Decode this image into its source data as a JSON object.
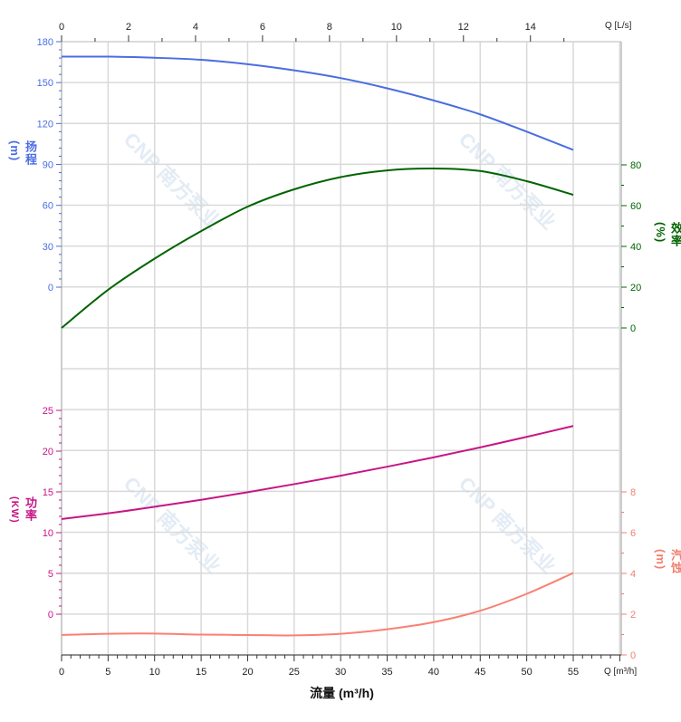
{
  "chart_data": [
    {
      "type": "line",
      "name_label": "扬程",
      "unit_label": "(m)",
      "color": "#4a6ee0",
      "ylim": [
        0,
        180
      ],
      "yticks": [
        0,
        30,
        60,
        90,
        120,
        150,
        180
      ],
      "x": [
        0,
        5,
        10,
        15,
        20,
        25,
        30,
        35,
        40,
        45,
        50,
        55
      ],
      "values": [
        169,
        169,
        168.2,
        166.7,
        163.5,
        159,
        153.3,
        145.8,
        136.9,
        126.7,
        114,
        100.7
      ]
    },
    {
      "type": "line",
      "name_label": "效率",
      "unit_label": "(%)",
      "color": "#006400",
      "ylim": [
        0,
        80
      ],
      "yticks": [
        0,
        20,
        40,
        60,
        80
      ],
      "x": [
        0,
        5,
        10,
        15,
        20,
        25,
        30,
        35,
        40,
        45,
        50,
        55
      ],
      "values": [
        0,
        18.7,
        34,
        47.5,
        59.5,
        68,
        74,
        77.3,
        78.2,
        77,
        72,
        65.3
      ]
    },
    {
      "type": "line",
      "name_label": "功率",
      "unit_label": "(KW)",
      "color": "#c71585",
      "ylim": [
        0,
        25
      ],
      "yticks": [
        0,
        5,
        10,
        15,
        20,
        25
      ],
      "x": [
        0,
        5,
        10,
        15,
        20,
        25,
        30,
        35,
        40,
        45,
        50,
        55
      ],
      "values": [
        11.67,
        12.37,
        13.18,
        14.03,
        14.96,
        15.95,
        16.99,
        18.09,
        19.24,
        20.46,
        21.75,
        23.08
      ]
    },
    {
      "type": "line",
      "name_label": "汽蚀",
      "unit_label": "(m)",
      "color": "#fa8072",
      "ylim": [
        0,
        8
      ],
      "yticks": [
        0,
        2,
        4,
        6,
        8
      ],
      "x": [
        0,
        5,
        10,
        15,
        20,
        25,
        30,
        35,
        40,
        45,
        50,
        55
      ],
      "values": [
        0.98,
        1.04,
        1.05,
        1.0,
        0.98,
        0.96,
        1.04,
        1.26,
        1.61,
        2.17,
        3.0,
        4.02
      ]
    }
  ],
  "x_axis": {
    "title": "流量 (m³/h)",
    "unit": "Q [m³/h]",
    "xlim": [
      0,
      60
    ],
    "ticks": [
      0,
      5,
      10,
      15,
      20,
      25,
      30,
      35,
      40,
      45,
      50,
      55
    ]
  },
  "top_axis": {
    "unit": "Q [L/s]",
    "ticks": [
      0,
      2,
      4,
      6,
      8,
      10,
      12,
      14
    ]
  },
  "grid": true,
  "watermark": "CNP 南方泵业"
}
